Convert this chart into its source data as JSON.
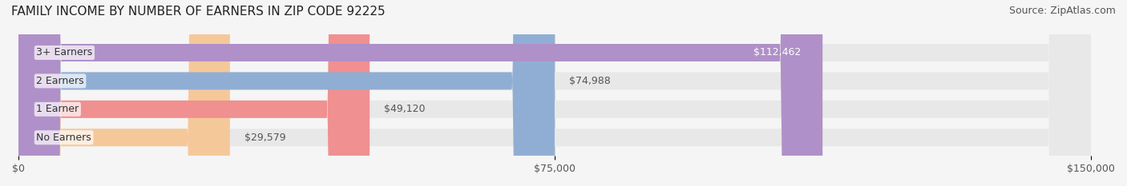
{
  "title": "FAMILY INCOME BY NUMBER OF EARNERS IN ZIP CODE 92225",
  "source": "Source: ZipAtlas.com",
  "categories": [
    "No Earners",
    "1 Earner",
    "2 Earners",
    "3+ Earners"
  ],
  "values": [
    29579,
    49120,
    74988,
    112462
  ],
  "bar_colors": [
    "#f5c89a",
    "#f09090",
    "#90aed4",
    "#b090c8"
  ],
  "bar_bg_color": "#e8e8e8",
  "value_labels": [
    "$29,579",
    "$49,120",
    "$74,988",
    "$112,462"
  ],
  "xlim": [
    0,
    150000
  ],
  "xticks": [
    0,
    75000,
    150000
  ],
  "xtick_labels": [
    "$0",
    "$75,000",
    "$150,000"
  ],
  "title_fontsize": 11,
  "source_fontsize": 9,
  "label_fontsize": 9,
  "bar_height": 0.62,
  "background_color": "#f5f5f5"
}
